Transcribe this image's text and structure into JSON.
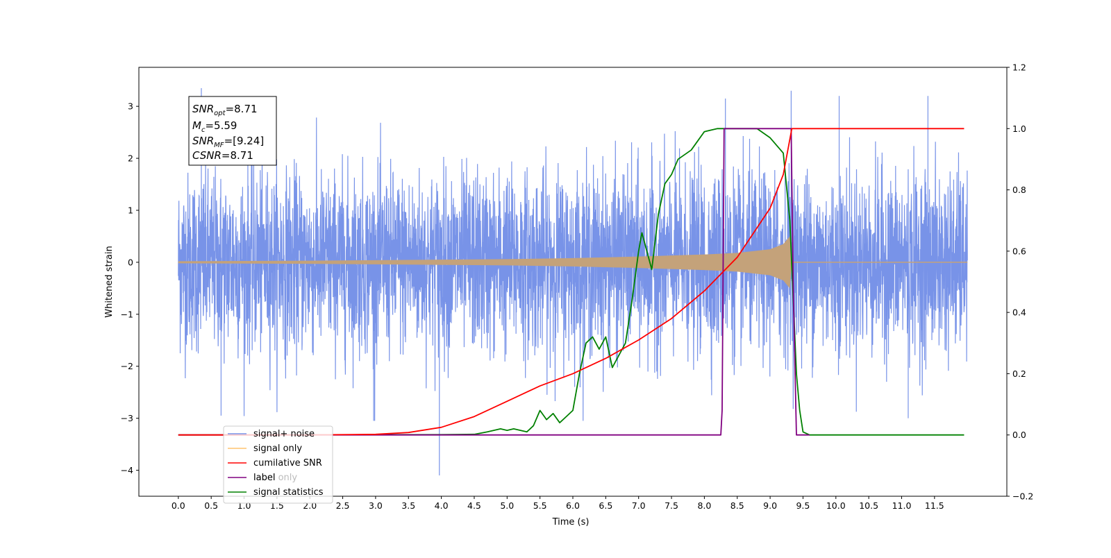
{
  "chart_data": {
    "type": "line",
    "xlabel": "Time (s)",
    "ylabel": "Whitened strain",
    "xlim": [
      -0.6,
      12.6
    ],
    "ylim": [
      -4.5,
      3.75
    ],
    "y2lim": [
      -0.2,
      1.2
    ],
    "x_ticks": [
      "0.0",
      "0.5",
      "1.0",
      "1.5",
      "2.0",
      "2.5",
      "3.0",
      "3.5",
      "4.0",
      "4.5",
      "5.0",
      "5.5",
      "6.0",
      "6.5",
      "7.0",
      "7.5",
      "8.0",
      "8.5",
      "9.0",
      "9.5",
      "10.0",
      "10.5",
      "11.0",
      "11.5"
    ],
    "y_ticks": [
      "3",
      "2",
      "1",
      "0",
      "−1",
      "−2",
      "−3",
      "−4"
    ],
    "y2_ticks": [
      "1.2",
      "1.0",
      "0.8",
      "0.6",
      "0.4",
      "0.2",
      "0.0",
      "−0.2"
    ],
    "grid": false,
    "legend_position": "bottom-left",
    "stats_box": {
      "snr_opt": "SNR",
      "snr_opt_sub": "opt",
      "snr_opt_val": "=8.71",
      "mc": "M",
      "mc_sub": "c",
      "mc_val": "=5.59",
      "snr_mf": "SNR",
      "snr_mf_sub": "MF",
      "snr_mf_val": "=[9.24]",
      "csnr": "CSNR",
      "csnr_val": "=8.71"
    },
    "series": [
      {
        "name": "signal+ noise",
        "axis": "left",
        "color": "#7893e8",
        "description_kind": "noise_band",
        "x_range": [
          0.0,
          12.0
        ],
        "std": 0.85,
        "min": -4.1,
        "max": 3.35
      },
      {
        "name": "signal only",
        "axis": "left",
        "color": "#ffc36e",
        "fill_color": "#c4a27a",
        "description_kind": "chirp_envelope",
        "envelope_x": [
          0.0,
          2.0,
          4.0,
          5.0,
          6.0,
          7.0,
          7.5,
          8.0,
          8.5,
          9.0,
          9.2,
          9.3,
          9.33,
          12.0
        ],
        "envelope_y": [
          0.02,
          0.03,
          0.05,
          0.06,
          0.08,
          0.11,
          0.13,
          0.15,
          0.18,
          0.25,
          0.35,
          0.5,
          0.0,
          0.0
        ]
      },
      {
        "name": "cumilative SNR",
        "axis": "right",
        "color": "#ff0000",
        "x": [
          0.0,
          1.0,
          2.0,
          3.0,
          3.5,
          4.0,
          4.5,
          5.0,
          5.5,
          6.0,
          6.5,
          7.0,
          7.5,
          8.0,
          8.5,
          9.0,
          9.2,
          9.33,
          9.34,
          11.95
        ],
        "values": [
          0.0,
          0.0,
          0.0,
          0.002,
          0.008,
          0.025,
          0.06,
          0.11,
          0.16,
          0.2,
          0.25,
          0.31,
          0.38,
          0.47,
          0.58,
          0.74,
          0.85,
          1.0,
          1.0,
          1.0
        ]
      },
      {
        "name": "label",
        "axis": "right",
        "color": "#800080",
        "x": [
          0.0,
          8.25,
          8.27,
          8.3,
          9.32,
          9.35,
          9.4,
          9.6
        ],
        "values": [
          0.0,
          0.0,
          0.08,
          1.0,
          1.0,
          0.5,
          0.0,
          0.0
        ]
      },
      {
        "name": "label only",
        "axis": "right",
        "color": "#bbbbbb",
        "x": [],
        "values": []
      },
      {
        "name": "signal statistics",
        "axis": "right",
        "color": "#008000",
        "x": [
          0.0,
          4.0,
          4.5,
          4.7,
          4.9,
          5.0,
          5.1,
          5.3,
          5.4,
          5.5,
          5.6,
          5.7,
          5.8,
          5.9,
          6.0,
          6.1,
          6.2,
          6.3,
          6.4,
          6.5,
          6.6,
          6.7,
          6.8,
          6.9,
          7.0,
          7.05,
          7.1,
          7.2,
          7.3,
          7.4,
          7.5,
          7.6,
          7.8,
          7.9,
          8.0,
          8.2,
          8.4,
          8.6,
          8.8,
          9.0,
          9.2,
          9.3,
          9.4,
          9.45,
          9.5,
          9.6,
          10.0,
          11.95
        ],
        "values": [
          0.0,
          0.001,
          0.002,
          0.01,
          0.02,
          0.015,
          0.02,
          0.01,
          0.03,
          0.08,
          0.05,
          0.07,
          0.04,
          0.06,
          0.08,
          0.2,
          0.3,
          0.32,
          0.28,
          0.32,
          0.22,
          0.26,
          0.3,
          0.44,
          0.6,
          0.66,
          0.62,
          0.54,
          0.72,
          0.82,
          0.85,
          0.9,
          0.93,
          0.96,
          0.99,
          1.0,
          1.0,
          1.0,
          1.0,
          0.97,
          0.92,
          0.7,
          0.2,
          0.08,
          0.01,
          0.0,
          0.0,
          0.0
        ]
      }
    ]
  }
}
